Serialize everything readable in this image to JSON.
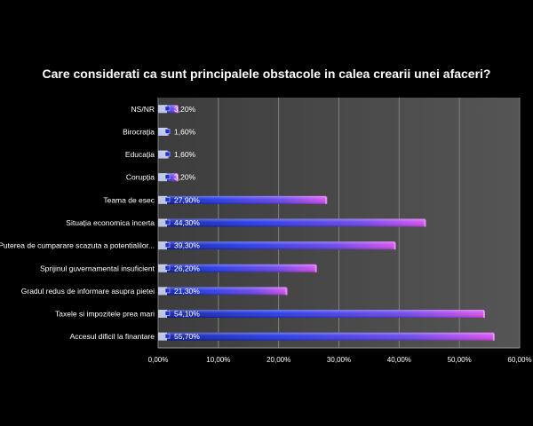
{
  "chart_data": {
    "type": "bar",
    "orientation": "horizontal",
    "title": "Care considerati ca sunt principalele obstacole in calea crearii unei afaceri?",
    "categories": [
      "NS/NR",
      "Birocrația",
      "Educația",
      "Corupția",
      "Teama de esec",
      "Situația economica incerta",
      "Puterea de cumparare scazuta a potentialilor...",
      "Sprijinul guvernamental insuficient",
      "Gradul redus de informare asupra pietei",
      "Taxele si impozitele prea mari",
      "Accesul dificil la finantare"
    ],
    "values": [
      3.2,
      1.6,
      1.6,
      3.2,
      27.9,
      44.3,
      39.3,
      26.2,
      21.3,
      54.1,
      55.7
    ],
    "value_labels": [
      "3,20%",
      "1,60%",
      "1,60%",
      "3,20%",
      "27,90%",
      "44,30%",
      "39,30%",
      "26,20%",
      "21,30%",
      "54,10%",
      "55,70%"
    ],
    "xlim": [
      0,
      60
    ],
    "xticks": [
      0,
      10,
      20,
      30,
      40,
      50,
      60
    ],
    "xtick_labels": [
      "0,00%",
      "10,00%",
      "20,00%",
      "30,00%",
      "40,00%",
      "50,00%",
      "60,00%"
    ],
    "grid": true,
    "colors": {
      "background": "#000000",
      "plot_area": "#4a4a4a",
      "bar_start": "#1c2fd8",
      "bar_end": "#d64cf0",
      "grid": "#808080"
    }
  }
}
